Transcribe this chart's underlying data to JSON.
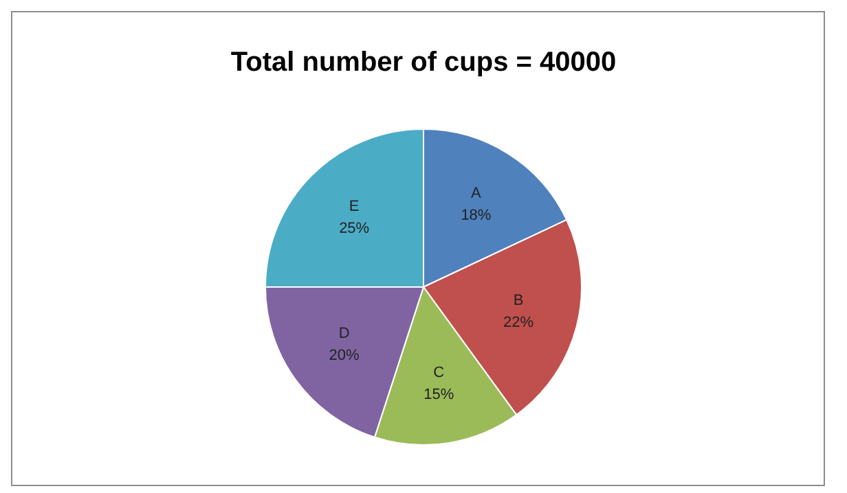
{
  "chart_data": {
    "type": "pie",
    "title": "Total number of cups = 40000",
    "categories": [
      "A",
      "B",
      "C",
      "D",
      "E"
    ],
    "values": [
      18,
      22,
      15,
      20,
      25
    ],
    "value_labels": [
      "18%",
      "22%",
      "15%",
      "20%",
      "25%"
    ],
    "colors": [
      "#4f81bd",
      "#c0504d",
      "#9bbb59",
      "#8064a2",
      "#4bacc6"
    ],
    "legend": false
  }
}
